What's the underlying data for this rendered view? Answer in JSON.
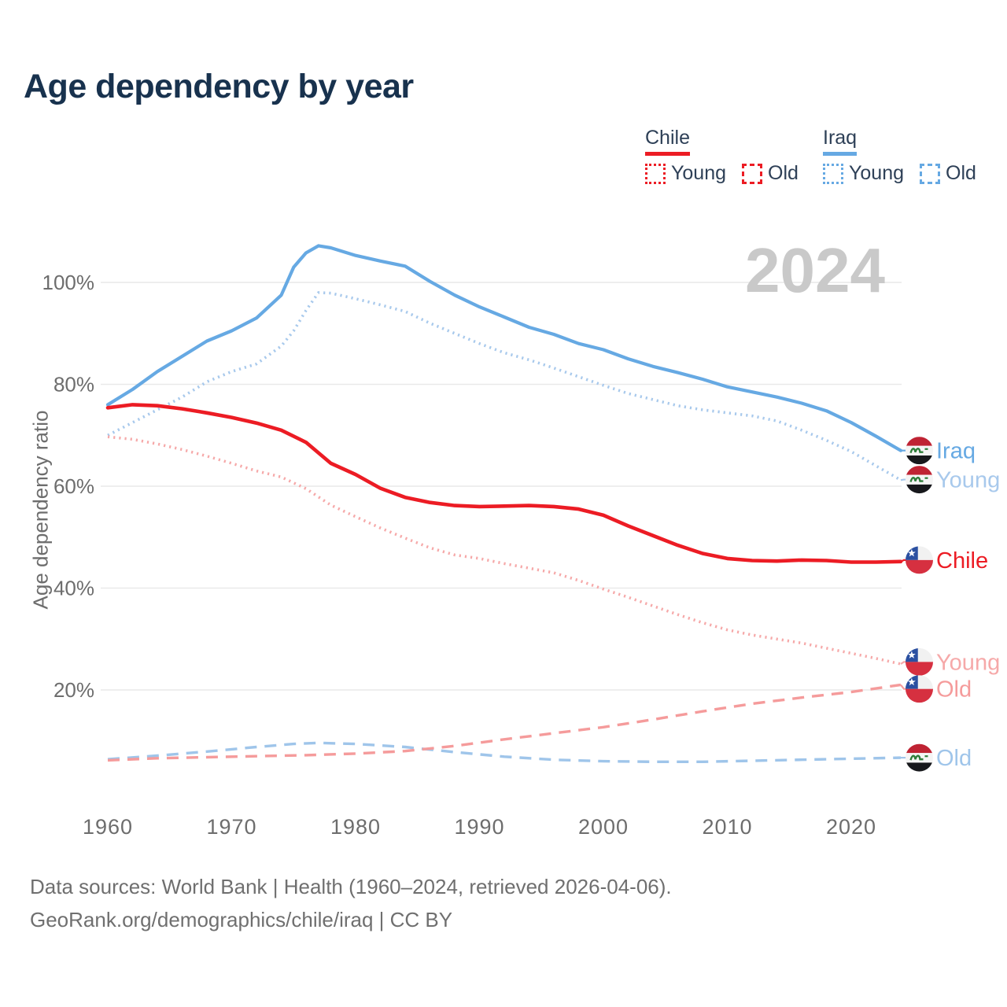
{
  "title": "Age dependency by year",
  "watermark": "2024",
  "colors": {
    "background": "#ffffff",
    "title_text": "#18324e",
    "legend_text": "#2e4057",
    "axis_text": "#6d6d6d",
    "grid": "#e9e9e9",
    "watermark": "#c9c9c9",
    "footer_text": "#6f6f6f",
    "chile_solid": "#ec1c24",
    "chile_dotted": "#f6a9a9",
    "chile_dashed": "#f59b9b",
    "iraq_solid": "#66a9e3",
    "iraq_dotted": "#a8c9ec",
    "iraq_dashed": "#9fc5ea",
    "chile_flag_red": "#d63040",
    "chile_flag_blue": "#2b50a1",
    "iraq_flag_red": "#bf2333",
    "iraq_flag_black": "#17181c",
    "iraq_flag_green": "#2e7d3a"
  },
  "legend": {
    "groups": [
      {
        "name": "Chile",
        "color": "#ec1c24",
        "items": [
          {
            "label": "Young",
            "style": "dotted"
          },
          {
            "label": "Old",
            "style": "dashed"
          }
        ]
      },
      {
        "name": "Iraq",
        "color": "#66a9e3",
        "items": [
          {
            "label": "Young",
            "style": "dotted"
          },
          {
            "label": "Old",
            "style": "dashed"
          }
        ]
      }
    ]
  },
  "footer": {
    "line1": "Data sources: World Bank | Health (1960–2024, retrieved 2026-04-06).",
    "line2": "GeoRank.org/demographics/chile/iraq | CC BY"
  },
  "chart_data": {
    "type": "line",
    "title": "Age dependency by year",
    "xlabel": "",
    "ylabel": "Age dependency ratio",
    "x_range": [
      1960,
      2024
    ],
    "ylim": [
      0,
      112
    ],
    "grid": true,
    "x_ticks": [
      1960,
      1970,
      1980,
      1990,
      2000,
      2010,
      2020
    ],
    "y_ticks": [
      {
        "value": 100,
        "label": "100%"
      },
      {
        "value": 80,
        "label": "80%"
      },
      {
        "value": 60,
        "label": "60%"
      },
      {
        "value": 40,
        "label": "40%"
      },
      {
        "value": 20,
        "label": "20%"
      }
    ],
    "series": [
      {
        "id": "iraq-old",
        "country": "Iraq",
        "component": "Old",
        "color": "#9fc5ea",
        "dash": "dashed",
        "width": 3.4,
        "points": [
          [
            1960,
            6.4
          ],
          [
            1964,
            7.1
          ],
          [
            1968,
            7.9
          ],
          [
            1972,
            8.8
          ],
          [
            1975,
            9.4
          ],
          [
            1977,
            9.6
          ],
          [
            1980,
            9.4
          ],
          [
            1984,
            8.8
          ],
          [
            1988,
            7.8
          ],
          [
            1992,
            6.9
          ],
          [
            1996,
            6.3
          ],
          [
            2000,
            6.0
          ],
          [
            2004,
            5.9
          ],
          [
            2008,
            5.9
          ],
          [
            2012,
            6.1
          ],
          [
            2016,
            6.3
          ],
          [
            2020,
            6.5
          ],
          [
            2024,
            6.7
          ]
        ]
      },
      {
        "id": "chile-old",
        "country": "Chile",
        "component": "Old",
        "color": "#f59b9b",
        "dash": "dashed",
        "width": 3.4,
        "points": [
          [
            1960,
            6.2
          ],
          [
            1964,
            6.6
          ],
          [
            1968,
            6.8
          ],
          [
            1972,
            7.0
          ],
          [
            1976,
            7.2
          ],
          [
            1980,
            7.5
          ],
          [
            1984,
            8.0
          ],
          [
            1988,
            9.0
          ],
          [
            1992,
            10.3
          ],
          [
            1996,
            11.5
          ],
          [
            2000,
            12.7
          ],
          [
            2004,
            14.2
          ],
          [
            2008,
            15.8
          ],
          [
            2012,
            17.3
          ],
          [
            2016,
            18.5
          ],
          [
            2020,
            19.6
          ],
          [
            2024,
            21.0
          ]
        ]
      },
      {
        "id": "iraq-young",
        "country": "Iraq",
        "component": "Young",
        "color": "#a8c9ec",
        "dash": "dotted",
        "width": 3.6,
        "points": [
          [
            1960,
            70
          ],
          [
            1962,
            72.5
          ],
          [
            1964,
            75
          ],
          [
            1966,
            77.5
          ],
          [
            1968,
            80.5
          ],
          [
            1970,
            82.5
          ],
          [
            1972,
            84
          ],
          [
            1974,
            87.5
          ],
          [
            1975,
            90.5
          ],
          [
            1976,
            94.5
          ],
          [
            1977,
            98
          ],
          [
            1978,
            97.9
          ],
          [
            1980,
            96.8
          ],
          [
            1982,
            95.6
          ],
          [
            1984,
            94.3
          ],
          [
            1986,
            92
          ],
          [
            1988,
            90
          ],
          [
            1990,
            88
          ],
          [
            1992,
            86.2
          ],
          [
            1994,
            84.8
          ],
          [
            1996,
            83.2
          ],
          [
            1998,
            81.5
          ],
          [
            2000,
            79.8
          ],
          [
            2002,
            78.2
          ],
          [
            2004,
            77
          ],
          [
            2006,
            75.8
          ],
          [
            2008,
            75
          ],
          [
            2010,
            74.4
          ],
          [
            2012,
            73.8
          ],
          [
            2014,
            72.8
          ],
          [
            2016,
            71
          ],
          [
            2018,
            69
          ],
          [
            2020,
            66.8
          ],
          [
            2022,
            64
          ],
          [
            2024,
            61.2
          ]
        ]
      },
      {
        "id": "chile-young",
        "country": "Chile",
        "component": "Young",
        "color": "#f6a9a9",
        "dash": "dotted",
        "width": 3.6,
        "points": [
          [
            1960,
            69.7
          ],
          [
            1962,
            69.2
          ],
          [
            1964,
            68.3
          ],
          [
            1966,
            67.2
          ],
          [
            1968,
            65.9
          ],
          [
            1970,
            64.5
          ],
          [
            1972,
            63
          ],
          [
            1974,
            61.8
          ],
          [
            1976,
            59.5
          ],
          [
            1978,
            56.3
          ],
          [
            1980,
            54
          ],
          [
            1982,
            51.8
          ],
          [
            1984,
            49.8
          ],
          [
            1986,
            47.9
          ],
          [
            1988,
            46.5
          ],
          [
            1990,
            45.8
          ],
          [
            1992,
            44.8
          ],
          [
            1994,
            43.9
          ],
          [
            1996,
            43
          ],
          [
            1998,
            41.5
          ],
          [
            2000,
            39.8
          ],
          [
            2002,
            38.2
          ],
          [
            2004,
            36.5
          ],
          [
            2006,
            34.8
          ],
          [
            2008,
            33.2
          ],
          [
            2010,
            31.8
          ],
          [
            2012,
            30.8
          ],
          [
            2014,
            30
          ],
          [
            2016,
            29.2
          ],
          [
            2018,
            28.2
          ],
          [
            2020,
            27.2
          ],
          [
            2022,
            26.2
          ],
          [
            2024,
            25.1
          ]
        ]
      },
      {
        "id": "iraq-total",
        "country": "Iraq",
        "component": "Total",
        "color": "#66a9e3",
        "dash": "solid",
        "width": 4.2,
        "points": [
          [
            1960,
            76
          ],
          [
            1962,
            79
          ],
          [
            1964,
            82.5
          ],
          [
            1966,
            85.5
          ],
          [
            1968,
            88.5
          ],
          [
            1970,
            90.5
          ],
          [
            1972,
            93
          ],
          [
            1974,
            97.5
          ],
          [
            1975,
            103
          ],
          [
            1976,
            105.8
          ],
          [
            1977,
            107.2
          ],
          [
            1978,
            106.8
          ],
          [
            1980,
            105.3
          ],
          [
            1982,
            104.2
          ],
          [
            1984,
            103.2
          ],
          [
            1986,
            100.2
          ],
          [
            1988,
            97.5
          ],
          [
            1990,
            95.2
          ],
          [
            1992,
            93.2
          ],
          [
            1994,
            91.2
          ],
          [
            1996,
            89.8
          ],
          [
            1998,
            88
          ],
          [
            2000,
            86.8
          ],
          [
            2002,
            85
          ],
          [
            2004,
            83.5
          ],
          [
            2006,
            82.3
          ],
          [
            2008,
            81
          ],
          [
            2010,
            79.5
          ],
          [
            2012,
            78.5
          ],
          [
            2014,
            77.5
          ],
          [
            2016,
            76.3
          ],
          [
            2018,
            74.8
          ],
          [
            2020,
            72.5
          ],
          [
            2022,
            69.8
          ],
          [
            2024,
            67
          ]
        ]
      },
      {
        "id": "chile-total",
        "country": "Chile",
        "component": "Total",
        "color": "#ec1c24",
        "dash": "solid",
        "width": 4.6,
        "points": [
          [
            1960,
            75.4
          ],
          [
            1962,
            76
          ],
          [
            1964,
            75.8
          ],
          [
            1966,
            75.2
          ],
          [
            1968,
            74.4
          ],
          [
            1970,
            73.5
          ],
          [
            1972,
            72.4
          ],
          [
            1974,
            71
          ],
          [
            1976,
            68.6
          ],
          [
            1978,
            64.5
          ],
          [
            1980,
            62.3
          ],
          [
            1982,
            59.6
          ],
          [
            1984,
            57.8
          ],
          [
            1986,
            56.8
          ],
          [
            1988,
            56.2
          ],
          [
            1990,
            56
          ],
          [
            1992,
            56.1
          ],
          [
            1994,
            56.2
          ],
          [
            1996,
            56
          ],
          [
            1998,
            55.5
          ],
          [
            2000,
            54.3
          ],
          [
            2002,
            52.2
          ],
          [
            2004,
            50.3
          ],
          [
            2006,
            48.4
          ],
          [
            2008,
            46.8
          ],
          [
            2010,
            45.8
          ],
          [
            2012,
            45.4
          ],
          [
            2014,
            45.3
          ],
          [
            2016,
            45.5
          ],
          [
            2018,
            45.4
          ],
          [
            2020,
            45.1
          ],
          [
            2022,
            45.1
          ],
          [
            2024,
            45.2
          ]
        ]
      }
    ],
    "end_labels": [
      {
        "text": "Iraq",
        "flag": "iraq",
        "series": "iraq-total",
        "color": "#66a9e3",
        "value": 67.0
      },
      {
        "text": "Young",
        "flag": "iraq",
        "series": "iraq-young",
        "color": "#a8c9ec",
        "value": 61.3
      },
      {
        "text": "Chile",
        "flag": "chile",
        "series": "chile-total",
        "color": "#ec1c24",
        "value": 45.5
      },
      {
        "text": "Young",
        "flag": "chile",
        "series": "chile-young",
        "color": "#f6a9a9",
        "value": 25.5
      },
      {
        "text": "Old",
        "flag": "chile",
        "series": "chile-old",
        "color": "#f59b9b",
        "value": 20.2
      },
      {
        "text": "Old",
        "flag": "iraq",
        "series": "iraq-old",
        "color": "#9fc5ea",
        "value": 6.7
      }
    ]
  }
}
